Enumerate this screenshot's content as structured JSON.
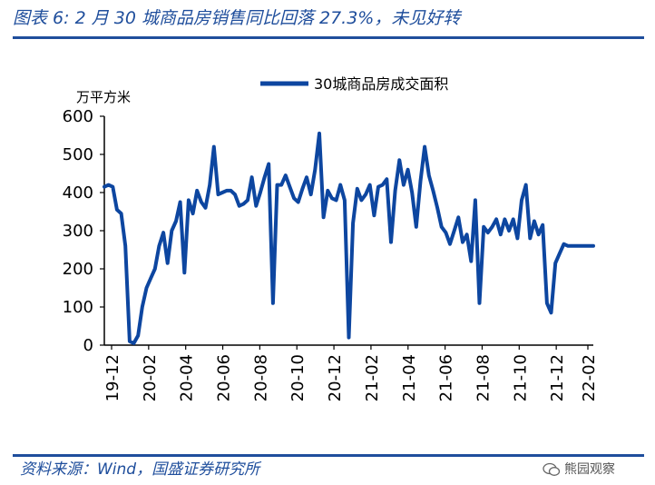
{
  "header": {
    "title": "图表 6:   2 月 30 城商品房销售同比回落 27.3%，未见好转"
  },
  "footer": {
    "source": "资料来源：Wind，国盛证券研究所",
    "watermark": "熊园观察"
  },
  "colors": {
    "accent": "#1f4e9c",
    "series": "#0d46a0"
  },
  "chart_data": {
    "type": "line",
    "title": "",
    "xlabel": "",
    "ylabel": "万平方米",
    "ylim": [
      0,
      600
    ],
    "yticks": [
      0,
      100,
      200,
      300,
      400,
      500,
      600
    ],
    "xticks": [
      "19-12",
      "20-02",
      "20-04",
      "20-06",
      "20-08",
      "20-10",
      "20-12",
      "21-02",
      "21-04",
      "21-06",
      "21-08",
      "21-10",
      "21-12",
      "22-02"
    ],
    "xrange_weeks": [
      0,
      116
    ],
    "grid": false,
    "legend": "top-center",
    "series": [
      {
        "name": "30城商品房成交面积",
        "x": [
          0,
          1,
          2,
          3,
          4,
          5,
          6,
          7,
          8,
          9,
          10,
          11,
          12,
          13,
          14,
          15,
          16,
          17,
          18,
          19,
          20,
          21,
          22,
          23,
          24,
          25,
          26,
          27,
          28,
          29,
          30,
          31,
          32,
          33,
          34,
          35,
          36,
          37,
          38,
          39,
          40,
          41,
          42,
          43,
          44,
          45,
          46,
          47,
          48,
          49,
          50,
          51,
          52,
          53,
          54,
          55,
          56,
          57,
          58,
          59,
          60,
          61,
          62,
          63,
          64,
          65,
          66,
          67,
          68,
          69,
          70,
          71,
          72,
          73,
          74,
          75,
          76,
          77,
          78,
          79,
          80,
          81,
          82,
          83,
          84,
          85,
          86,
          87,
          88,
          89,
          90,
          91,
          92,
          93,
          94,
          95,
          96,
          97,
          98,
          99,
          100,
          101,
          102,
          103,
          104,
          105,
          106,
          107,
          108,
          109,
          110,
          111,
          112,
          113,
          114,
          115,
          116
        ],
        "values": [
          415,
          420,
          415,
          355,
          345,
          260,
          10,
          5,
          25,
          100,
          150,
          175,
          200,
          260,
          295,
          215,
          300,
          325,
          375,
          190,
          380,
          345,
          405,
          375,
          360,
          420,
          520,
          395,
          400,
          405,
          405,
          395,
          365,
          370,
          380,
          440,
          365,
          400,
          440,
          475,
          110,
          420,
          420,
          445,
          415,
          385,
          375,
          410,
          440,
          395,
          460,
          555,
          335,
          405,
          385,
          380,
          420,
          380,
          20,
          320,
          410,
          380,
          395,
          420,
          340,
          415,
          420,
          435,
          270,
          405,
          485,
          420,
          460,
          400,
          310,
          430,
          520,
          445,
          405,
          360,
          310,
          295,
          265,
          300,
          335,
          270,
          290,
          220,
          380,
          110,
          310,
          295,
          310,
          330,
          290,
          330,
          300,
          330,
          280,
          380,
          420,
          280,
          325,
          290,
          315,
          110,
          85,
          215,
          240,
          265,
          260,
          260,
          260,
          260,
          260,
          260,
          260
        ]
      }
    ]
  }
}
